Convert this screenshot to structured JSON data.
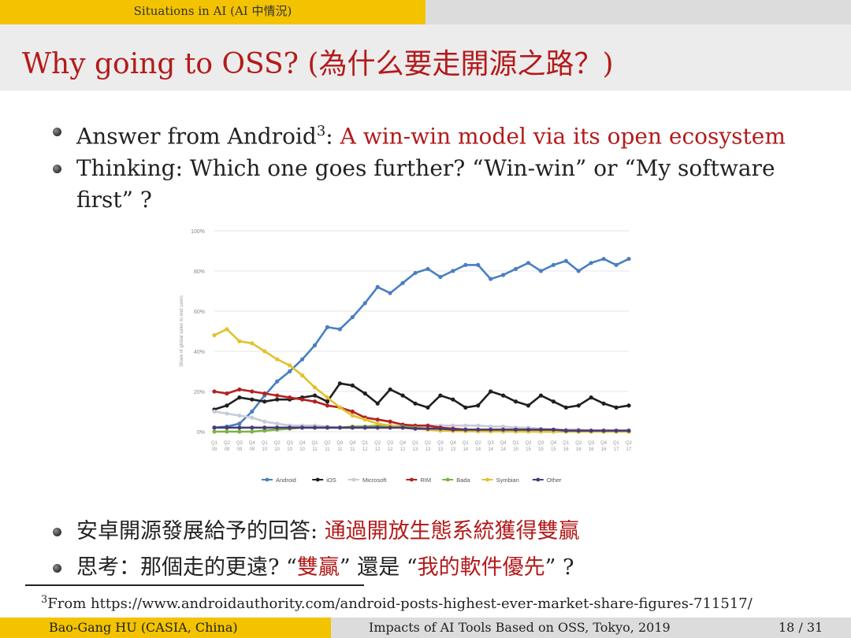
{
  "header": {
    "section": "Situations in AI (AI 中情況)"
  },
  "slide": {
    "title": "Why going to OSS? (為什么要走開源之路？)",
    "bullets": [
      {
        "text": "Answer from Android",
        "sup": "3",
        "sep": ": ",
        "highlight": "A win-win model via its open ecosystem"
      },
      {
        "line1": "Thinking:  Which one goes further? “Win-win” or “My software",
        "line2": "first” ?"
      },
      {
        "prefix": "安卓開源發展給予的回答: ",
        "highlight": "通過開放生態系統獲得雙贏"
      },
      {
        "p1": "思考：那個走的更遠? “",
        "h1": "雙贏",
        "p2": "” 還是 “",
        "h2": "我的軟件優先",
        "p3": "” ?"
      }
    ]
  },
  "footnote": {
    "number": "3",
    "text": "From https://www.androidauthority.com/android-posts-highest-ever-market-share-figures-711517/"
  },
  "footer": {
    "author": "Bao-Gang HU (CASIA, China)",
    "talk": "Impacts of AI Tools Based on OSS, Tokyo, 2019",
    "page": "18 / 31"
  },
  "chart_data": {
    "type": "line",
    "ylabel": "Share of global sales to end users",
    "ylim": [
      0,
      100
    ],
    "ytick_labels": [
      "0%",
      "20%",
      "40%",
      "60%",
      "80%",
      "100%"
    ],
    "categories": [
      "Q1 09",
      "Q2 09",
      "Q3 09",
      "Q4 09",
      "Q1 10",
      "Q2 10",
      "Q3 10",
      "Q4 10",
      "Q1 11",
      "Q2 11",
      "Q3 11",
      "Q4 11",
      "Q1 12",
      "Q2 12",
      "Q3 12",
      "Q4 12",
      "Q1 13",
      "Q2 13",
      "Q3 13",
      "Q4 13",
      "Q1 14",
      "Q2 14",
      "Q3 14",
      "Q4 14",
      "Q1 15",
      "Q2 15",
      "Q3 15",
      "Q4 15",
      "Q1 16",
      "Q2 16",
      "Q3 16",
      "Q4 16",
      "Q1 17",
      "Q2 17"
    ],
    "legend_position": "bottom",
    "series": [
      {
        "name": "Android",
        "color": "#4a7fc1",
        "values": [
          2,
          2.5,
          4,
          10,
          18,
          25,
          30,
          36,
          43,
          52,
          51,
          57,
          64,
          72,
          69,
          74,
          79,
          81,
          77,
          80,
          83,
          83,
          76,
          78,
          81,
          84,
          80,
          83,
          85,
          80,
          84,
          86,
          83,
          86
        ]
      },
      {
        "name": "iOS",
        "color": "#1f1f1f",
        "values": [
          11,
          13,
          17,
          16,
          15,
          16,
          16,
          17,
          18,
          15,
          24,
          23,
          19,
          14,
          21,
          18,
          14,
          12,
          18,
          16,
          12,
          13,
          20,
          18,
          15,
          13,
          18,
          15,
          12,
          13,
          17,
          14,
          12,
          13
        ]
      },
      {
        "name": "Microsoft",
        "color": "#c6ccd6",
        "values": [
          10,
          9,
          8,
          7,
          5,
          4,
          3,
          3,
          3,
          2.5,
          2,
          2,
          2,
          2,
          2,
          2.5,
          3,
          3,
          3,
          3,
          3,
          3,
          2.5,
          2.5,
          2,
          2,
          1.5,
          1,
          1,
          1,
          0.5,
          0.5,
          0.5,
          0.5
        ]
      },
      {
        "name": "RIM",
        "color": "#b42020",
        "values": [
          20,
          19,
          21,
          20,
          19,
          18,
          17,
          16,
          15,
          13,
          12,
          10,
          7,
          6,
          5,
          3.5,
          3,
          3,
          2,
          1.5,
          1,
          0.5,
          0.5,
          0.5,
          0.3,
          0.3,
          0.2,
          0.2,
          0.2,
          0.1,
          0.1,
          0.1,
          0.1,
          0.1
        ]
      },
      {
        "name": "Bada",
        "color": "#7cb342",
        "values": [
          0,
          0,
          0,
          0,
          0.5,
          1,
          1.5,
          2,
          2,
          2,
          2,
          2.5,
          2.5,
          3,
          3,
          2.5,
          2,
          1.5,
          1,
          0.5,
          0.5,
          0.5,
          0.2,
          0.1,
          0.1,
          0.1,
          0,
          0,
          0,
          0,
          0,
          0,
          0,
          0
        ]
      },
      {
        "name": "Symbian",
        "color": "#e2c22c",
        "values": [
          48,
          51,
          45,
          44,
          40,
          36,
          33,
          28,
          22,
          17,
          12,
          8,
          6,
          4,
          3,
          2,
          1.5,
          1,
          0.5,
          0.3,
          0.2,
          0.1,
          0.1,
          0.1,
          0,
          0,
          0,
          0,
          0,
          0,
          0,
          0,
          0,
          0
        ]
      },
      {
        "name": "Other",
        "color": "#4a3a78",
        "values": [
          2,
          2,
          2,
          2,
          2,
          2,
          2,
          2,
          2,
          2,
          2,
          2,
          2,
          2,
          2,
          2,
          1.5,
          1.5,
          1.5,
          1,
          1,
          1,
          1,
          1,
          1,
          1,
          1,
          1,
          0.5,
          0.5,
          0.5,
          0.5,
          0.5,
          0.5
        ]
      }
    ]
  }
}
